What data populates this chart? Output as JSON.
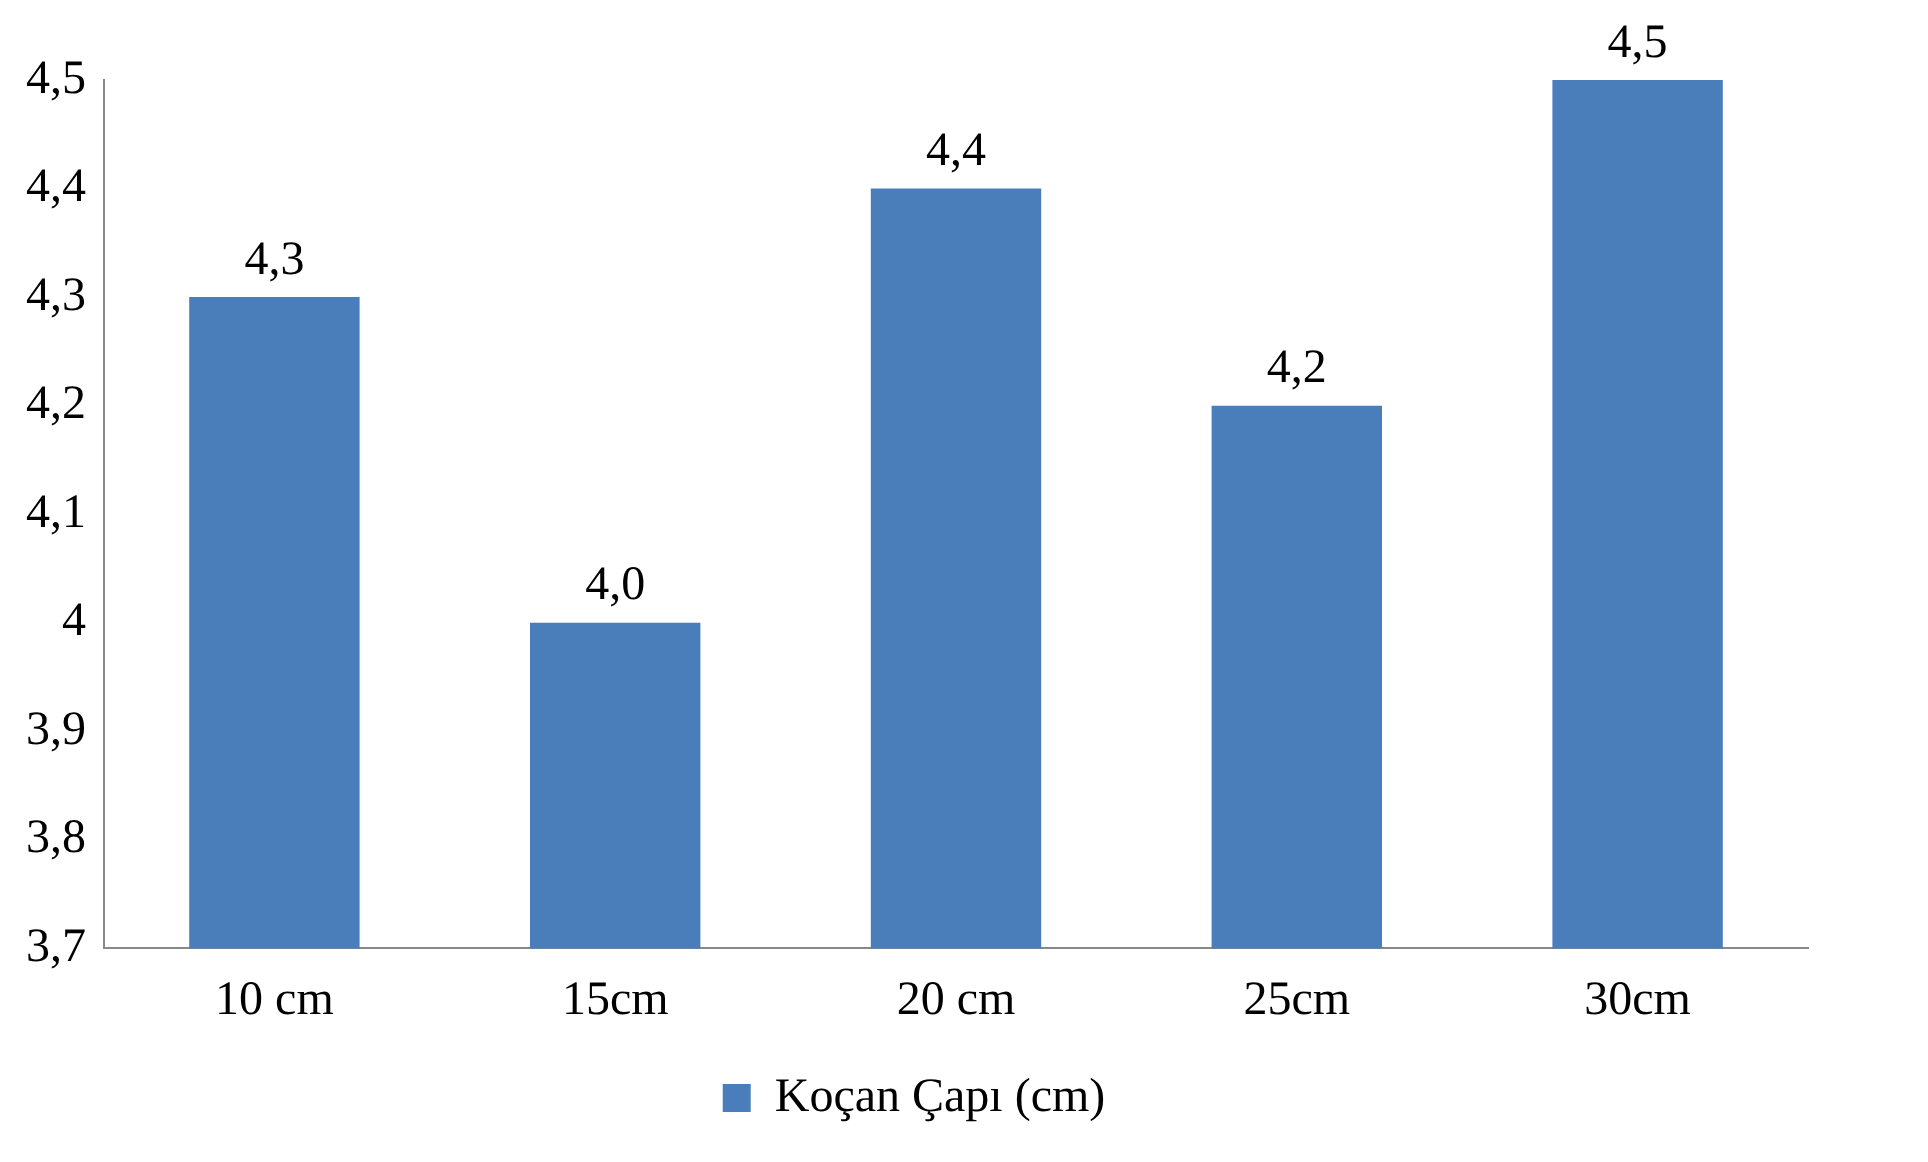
{
  "chart_data": {
    "type": "bar",
    "categories": [
      "10 cm",
      "15cm",
      "20 cm",
      "25cm",
      "30cm"
    ],
    "series": [
      {
        "name": "Koçan Çapı (cm)",
        "color": "#4a7ebb",
        "values": [
          4.3,
          4.0,
          4.4,
          4.2,
          4.5
        ],
        "value_labels": [
          "4,3",
          "4,0",
          "4,4",
          "4,2",
          "4,5"
        ]
      }
    ],
    "ylim": [
      3.7,
      4.5
    ],
    "yticks": [
      {
        "value": 3.7,
        "label": "3,7"
      },
      {
        "value": 3.8,
        "label": "3,8"
      },
      {
        "value": 3.9,
        "label": "3,9"
      },
      4,
      {
        "value": 4.1,
        "label": "4,1"
      },
      {
        "value": 4.2,
        "label": "4,2"
      },
      {
        "value": 4.3,
        "label": "4,3"
      },
      {
        "value": 4.4,
        "label": "4,4"
      },
      {
        "value": 4.5,
        "label": "4,5"
      }
    ],
    "grid": false,
    "legend": "bottom"
  }
}
